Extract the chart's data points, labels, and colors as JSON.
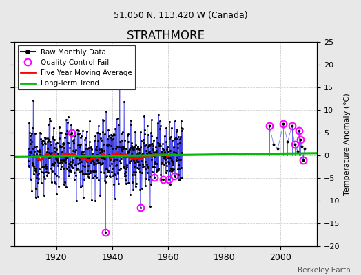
{
  "title": "STRATHMORE",
  "subtitle": "51.050 N, 113.420 W (Canada)",
  "ylabel_right": "Temperature Anomaly (°C)",
  "credit": "Berkeley Earth",
  "xlim": [
    1905,
    2013
  ],
  "ylim": [
    -20,
    25
  ],
  "yticks": [
    -20,
    -15,
    -10,
    -5,
    0,
    5,
    10,
    15,
    20,
    25
  ],
  "xticks": [
    1920,
    1940,
    1960,
    1980,
    2000
  ],
  "raw_color": "#0000dd",
  "qc_color": "#ff00ff",
  "moving_avg_color": "#ff0000",
  "trend_color": "#00bb00",
  "background_color": "#e8e8e8",
  "plot_background": "#ffffff",
  "seed": 12345
}
